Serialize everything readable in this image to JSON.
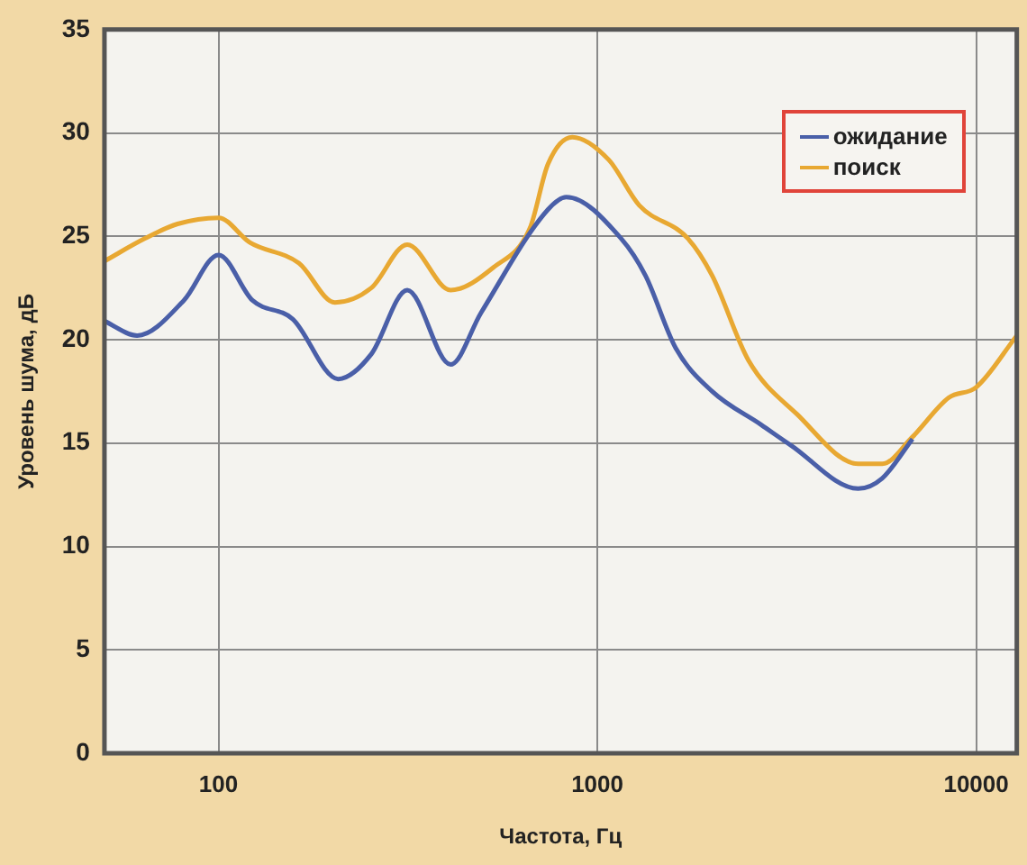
{
  "chart_data": {
    "type": "line",
    "xlabel": "Частота, Гц",
    "ylabel": "Уровень шума, дБ",
    "log": "x",
    "xlim": [
      50,
      12800
    ],
    "xticks": [
      100,
      1000,
      10000
    ],
    "ylim": [
      0,
      35
    ],
    "yticks": [
      0,
      5,
      10,
      15,
      20,
      25,
      30,
      35
    ],
    "grid": true,
    "legend": "top right",
    "marker": "none",
    "line_style": "solid",
    "series": [
      {
        "name": "ожидание",
        "color": "#4a5fa8",
        "x": [
          50,
          61,
          81,
          100,
          123,
          157,
          207,
          253,
          315,
          410,
          493,
          741,
          828,
          1155,
          1340,
          1610,
          2010,
          2700,
          3240,
          4880,
          5650,
          6790
        ],
        "values": [
          20.9,
          20.2,
          21.9,
          24.1,
          21.9,
          21.0,
          18.1,
          19.3,
          22.4,
          18.8,
          21.3,
          26.3,
          26.9,
          24.9,
          23.1,
          19.6,
          17.5,
          15.9,
          14.9,
          12.8,
          13.3,
          15.2
        ]
      },
      {
        "name": "поиск",
        "color": "#e8a832",
        "x": [
          50,
          64,
          78,
          100,
          121,
          163,
          203,
          253,
          315,
          410,
          532,
          664,
          741,
          859,
          1072,
          1290,
          1733,
          2010,
          2506,
          3365,
          4880,
          5650,
          6790,
          8470,
          10000,
          12800
        ],
        "values": [
          23.8,
          24.9,
          25.6,
          25.9,
          24.7,
          23.7,
          21.8,
          22.5,
          24.6,
          22.4,
          23.5,
          25.4,
          28.5,
          29.8,
          28.7,
          26.5,
          24.9,
          23.1,
          19.0,
          16.4,
          14.0,
          14.0,
          15.3,
          17.2,
          17.7,
          20.2
        ]
      }
    ]
  }
}
